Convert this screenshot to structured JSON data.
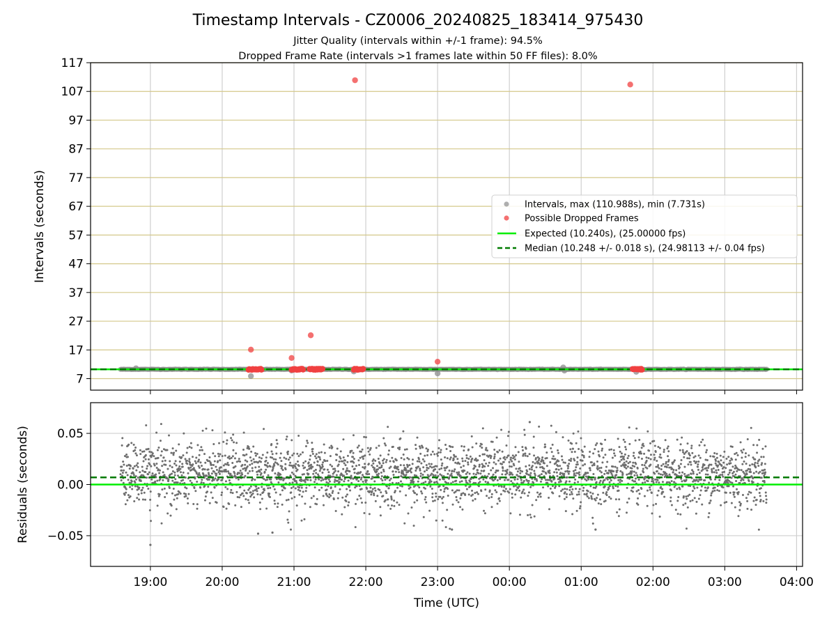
{
  "title": "Timestamp Intervals - CZ0006_20240825_183414_975430",
  "subtitle_1": "Jitter Quality (intervals within +/-1 frame): 94.5%",
  "subtitle_2": "Dropped Frame Rate (intervals >1 frames late within 50 FF files): 8.0%",
  "colors": {
    "intervals": "#8c8c8c",
    "dropped": "#f04040",
    "expected": "#00ee00",
    "median": "#007a00",
    "hgrid_top": "#d4c88a",
    "grid": "#cfcfcf",
    "residuals": "#6e6e6e"
  },
  "chart_data": [
    {
      "type": "scatter",
      "panel": "top",
      "ylabel": "Intervals (seconds)",
      "ylim": [
        3,
        117
      ],
      "yticks": [
        "7",
        "17",
        "27",
        "37",
        "47",
        "57",
        "67",
        "77",
        "87",
        "97",
        "107",
        "117"
      ],
      "xlim": [
        "18:10",
        "04:05"
      ],
      "xticks": [
        "19:00",
        "20:00",
        "21:00",
        "22:00",
        "23:00",
        "00:00",
        "01:00",
        "02:00",
        "03:00",
        "04:00"
      ],
      "grid": "on",
      "legend_position": "center-right",
      "legend": [
        "Intervals, max (110.988s), min (7.731s)",
        "Possible Dropped Frames",
        "Expected (10.240s), (25.00000 fps)",
        "Median (10.248 +/- 0.018 s), (24.98113 +/- 0.04 fps)"
      ],
      "expected_interval": 10.24,
      "median_interval": 10.248,
      "intervals_time_range": [
        "18:35",
        "03:35"
      ],
      "interval_outliers": [
        {
          "t": "18:48",
          "y": 10.6
        },
        {
          "t": "20:24",
          "y": 7.9
        },
        {
          "t": "20:58",
          "y": 9.8
        },
        {
          "t": "21:50",
          "y": 9.5
        },
        {
          "t": "23:00",
          "y": 8.8
        },
        {
          "t": "00:45",
          "y": 10.9
        },
        {
          "t": "00:46",
          "y": 9.8
        },
        {
          "t": "01:46",
          "y": 9.4
        }
      ],
      "dropped_frames": [
        {
          "t": "20:24",
          "y": 17.1
        },
        {
          "t": "20:58",
          "y": 14.2
        },
        {
          "t": "21:14",
          "y": 22.1
        },
        {
          "t": "21:51",
          "y": 110.9
        },
        {
          "t": "23:00",
          "y": 12.9
        },
        {
          "t": "01:41",
          "y": 109.4
        }
      ],
      "dropped_frame_clusters": [
        {
          "t_start": "20:22",
          "t_end": "20:33",
          "y": 10.24
        },
        {
          "t_start": "20:58",
          "t_end": "21:08",
          "y": 10.24
        },
        {
          "t_start": "21:13",
          "t_end": "21:24",
          "y": 10.24
        },
        {
          "t_start": "21:50",
          "t_end": "21:58",
          "y": 10.24
        },
        {
          "t_start": "01:43",
          "t_end": "01:51",
          "y": 10.24
        }
      ]
    },
    {
      "type": "scatter",
      "panel": "bottom",
      "ylabel": "Residuals (seconds)",
      "xlabel": "Time (UTC)",
      "ylim": [
        -0.08,
        0.08
      ],
      "yticks": [
        "0.05",
        "0.00",
        "−0.05"
      ],
      "yticks_values": [
        0.05,
        0.0,
        -0.05
      ],
      "xlim": [
        "18:10",
        "04:05"
      ],
      "xticks": [
        "19:00",
        "20:00",
        "21:00",
        "22:00",
        "23:00",
        "00:00",
        "01:00",
        "02:00",
        "03:00",
        "04:00"
      ],
      "grid": "on",
      "expected_residual": 0.0,
      "median_residual": 0.007,
      "residual_time_range": [
        "18:35",
        "03:35"
      ],
      "residual_spread": [
        -0.05,
        0.06
      ],
      "residual_center": 0.01,
      "residual_outliers": [
        {
          "t": "19:00",
          "y": -0.059
        },
        {
          "t": "20:30",
          "y": -0.048
        },
        {
          "t": "20:42",
          "y": -0.047
        },
        {
          "t": "23:12",
          "y": -0.044
        },
        {
          "t": "00:17",
          "y": 0.061
        },
        {
          "t": "01:12",
          "y": -0.044
        }
      ]
    }
  ]
}
